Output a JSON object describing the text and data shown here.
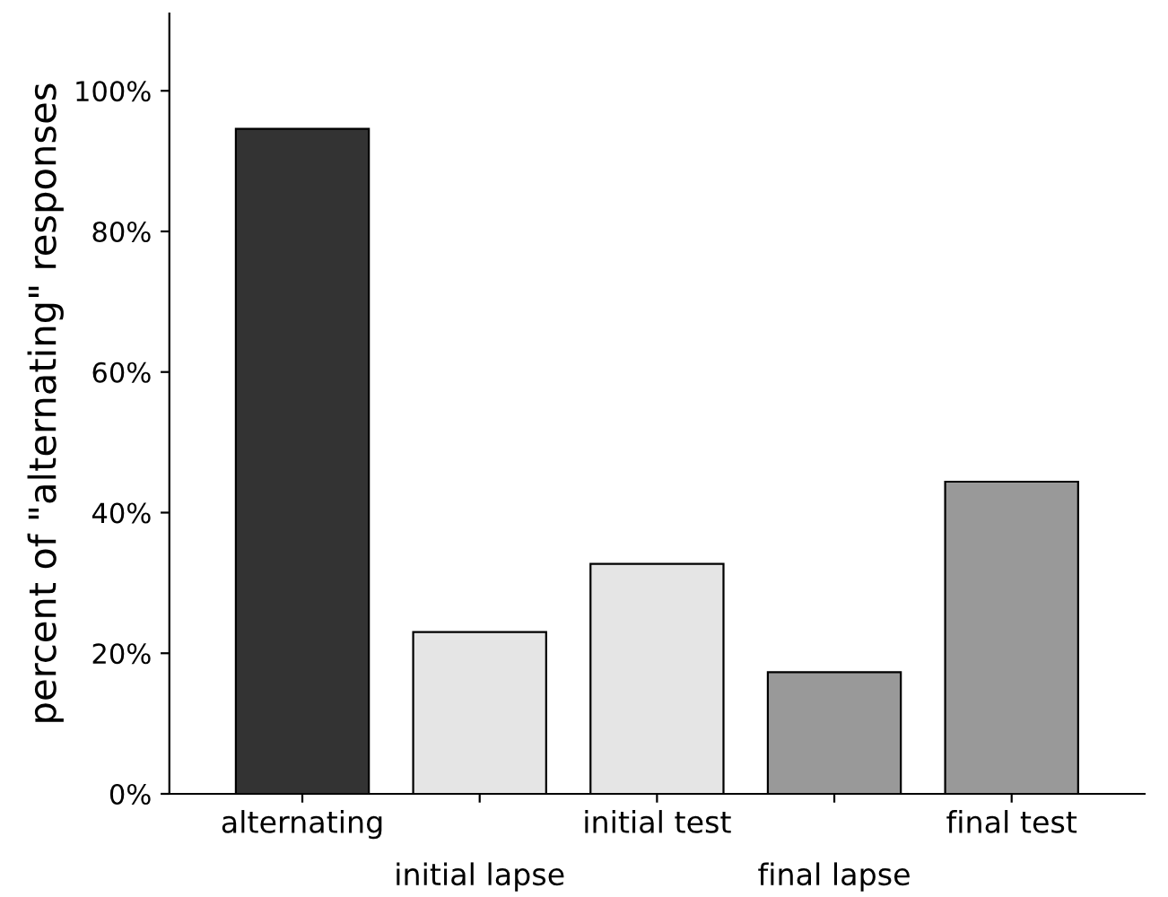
{
  "chart_data": {
    "type": "bar",
    "ylabel": "percent of \"alternating\" responses",
    "categories": [
      "alternating",
      "initial lapse",
      "initial test",
      "final lapse",
      "final test"
    ],
    "values": [
      94.6,
      23.0,
      32.7,
      17.3,
      44.4
    ],
    "colors": [
      "#333333",
      "#e5e5e5",
      "#e5e5e5",
      "#999999",
      "#999999"
    ],
    "ylim": [
      0,
      111
    ],
    "yticks": [
      {
        "value": 0,
        "label": "0%"
      },
      {
        "value": 20,
        "label": "20%"
      },
      {
        "value": 40,
        "label": "40%"
      },
      {
        "value": 60,
        "label": "60%"
      },
      {
        "value": 80,
        "label": "80%"
      },
      {
        "value": 100,
        "label": "100%"
      }
    ],
    "grid": false,
    "legend": false
  }
}
